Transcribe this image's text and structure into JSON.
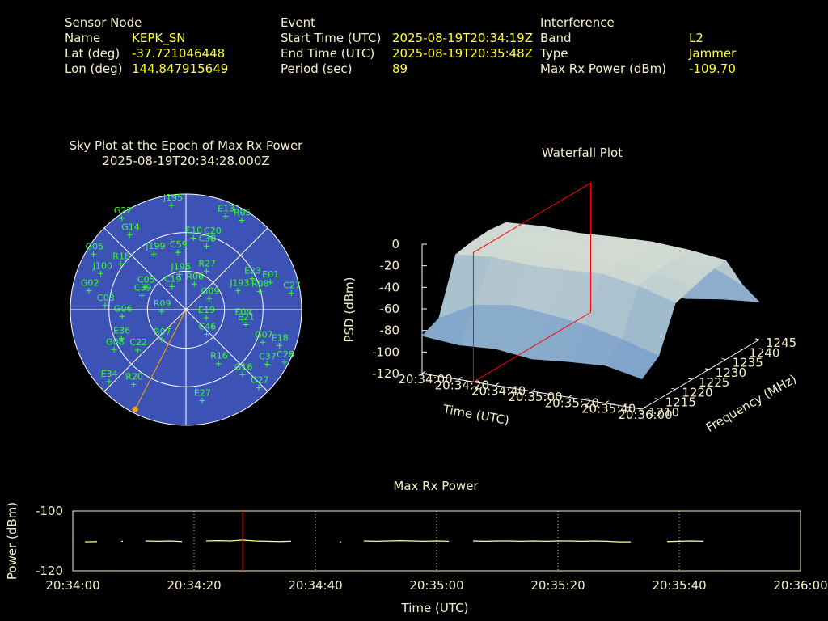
{
  "header": {
    "sensor": {
      "title": "Sensor Node",
      "rows": [
        [
          "Name",
          "KEPK_SN"
        ],
        [
          "Lat (deg)",
          "-37.721046448"
        ],
        [
          "Lon (deg)",
          "144.847915649"
        ]
      ]
    },
    "event": {
      "title": "Event",
      "rows": [
        [
          "Start Time (UTC)",
          "2025-08-19T20:34:19Z"
        ],
        [
          "End Time (UTC)",
          "2025-08-19T20:35:48Z"
        ],
        [
          "Period (sec)",
          "89"
        ]
      ]
    },
    "interference": {
      "title": "Interference",
      "rows": [
        [
          "Band",
          "L2"
        ],
        [
          "Type",
          "Jammer"
        ],
        [
          "Max Rx Power (dBm)",
          "-109.70"
        ]
      ]
    }
  },
  "chart_data": [
    {
      "type": "skyplot",
      "title": "Sky Plot at the Epoch of Max Rx Power",
      "subtitle": "2025-08-19T20:34:28.000Z",
      "rlim": [
        90,
        0
      ],
      "rticks": [
        0,
        30,
        60
      ],
      "azticks": [
        0,
        45,
        90,
        135,
        180,
        225,
        270,
        315
      ],
      "background": "#3d52b5",
      "color": "#33ff33",
      "satellites": [
        {
          "name": "J195",
          "az": 352,
          "el": 8
        },
        {
          "name": "E13",
          "az": 23,
          "el": 11
        },
        {
          "name": "R05",
          "az": 32,
          "el": 8
        },
        {
          "name": "G22",
          "az": 325,
          "el": 3
        },
        {
          "name": "G14",
          "az": 323,
          "el": 17
        },
        {
          "name": "E10",
          "az": 6,
          "el": 34
        },
        {
          "name": "C20",
          "az": 20,
          "el": 31
        },
        {
          "name": "J199",
          "az": 330,
          "el": 40
        },
        {
          "name": "C59",
          "az": 352,
          "el": 45
        },
        {
          "name": "C38",
          "az": 18,
          "el": 38
        },
        {
          "name": "R27",
          "az": 28,
          "el": 56
        },
        {
          "name": "J196",
          "az": 349,
          "el": 62
        },
        {
          "name": "R06",
          "az": 18,
          "el": 69
        },
        {
          "name": "C19",
          "az": 329,
          "el": 69
        },
        {
          "name": "E23",
          "az": 65,
          "el": 33
        },
        {
          "name": "E01",
          "az": 72,
          "el": 21
        },
        {
          "name": "J193",
          "az": 70,
          "el": 47
        },
        {
          "name": "R08",
          "az": 76,
          "el": 31
        },
        {
          "name": "C27",
          "az": 81,
          "el": 7
        },
        {
          "name": "G05",
          "az": 301,
          "el": 6
        },
        {
          "name": "R18",
          "az": 305,
          "el": 28
        },
        {
          "name": "J100",
          "az": 293,
          "el": 18
        },
        {
          "name": "G02",
          "az": 281,
          "el": 13
        },
        {
          "name": "C05",
          "az": 299,
          "el": 54
        },
        {
          "name": "C39",
          "az": 288,
          "el": 54
        },
        {
          "name": "G09",
          "az": 65,
          "el": 70
        },
        {
          "name": "R09",
          "az": 266,
          "el": 71
        },
        {
          "name": "E19",
          "az": 112,
          "el": 73
        },
        {
          "name": "E04",
          "az": 100,
          "el": 45
        },
        {
          "name": "C03",
          "az": 273,
          "el": 27
        },
        {
          "name": "G06",
          "az": 264,
          "el": 40
        },
        {
          "name": "E36",
          "az": 246,
          "el": 35
        },
        {
          "name": "G08",
          "az": 241,
          "el": 26
        },
        {
          "name": "C22",
          "az": 230,
          "el": 41
        },
        {
          "name": "R07",
          "az": 219,
          "el": 60
        },
        {
          "name": "C46",
          "az": 140,
          "el": 65
        },
        {
          "name": "E21",
          "az": 104,
          "el": 42
        },
        {
          "name": "G07",
          "az": 113,
          "el": 25
        },
        {
          "name": "E18",
          "az": 111,
          "el": 12
        },
        {
          "name": "R16",
          "az": 149,
          "el": 41
        },
        {
          "name": "C37",
          "az": 124,
          "el": 14
        },
        {
          "name": "C28",
          "az": 118,
          "el": 3
        },
        {
          "name": "G16",
          "az": 139,
          "el": 23
        },
        {
          "name": "G27",
          "az": 137,
          "el": 7
        },
        {
          "name": "E34",
          "az": 227,
          "el": 8
        },
        {
          "name": "R20",
          "az": 215,
          "el": 19
        },
        {
          "name": "E27",
          "az": 170,
          "el": 18
        }
      ],
      "interference": {
        "az": 207,
        "el": 3,
        "color": "#ffa500"
      }
    },
    {
      "type": "surface3d",
      "title": "Waterfall Plot",
      "xlabel": "Time (UTC)",
      "ylabel": "Frequency (MHz)",
      "zlabel": "PSD (dBm)",
      "xlim": [
        "20:34:00",
        "20:36:00"
      ],
      "xticks": [
        "20:34:00",
        "20:34:20",
        "20:34:40",
        "20:35:00",
        "20:35:20",
        "20:35:40",
        "20:36:00"
      ],
      "ylim": [
        1210,
        1245
      ],
      "yticks": [
        1210,
        1215,
        1220,
        1225,
        1230,
        1235,
        1240,
        1245
      ],
      "zlim": [
        -120,
        0
      ],
      "zticks": [
        -120,
        -100,
        -80,
        -60,
        -40,
        -20,
        0
      ],
      "z": [
        [
          -85,
          -88,
          -86,
          -90,
          -87,
          -85,
          -92
        ],
        [
          -78,
          -60,
          -55,
          -58,
          -62,
          -70,
          -80
        ],
        [
          -28,
          -25,
          -27,
          -26,
          -24,
          -30,
          -40
        ],
        [
          -25,
          -22,
          -24,
          -23,
          -22,
          -26,
          -35
        ],
        [
          -24,
          -23,
          -22,
          -24,
          -23,
          -25,
          -30
        ],
        [
          -26,
          -24,
          -25,
          -23,
          -22,
          -24,
          -28
        ],
        [
          -55,
          -50,
          -52,
          -48,
          -50,
          -45,
          -60
        ],
        [
          -95,
          -92,
          -94,
          -90,
          -93,
          -88,
          -85
        ]
      ],
      "cursor": "20:34:28",
      "cursor_color": "#ff0000"
    },
    {
      "type": "line",
      "title": "Max Rx Power",
      "xlabel": "Time (UTC)",
      "ylabel": "Power (dBm)",
      "xlim": [
        "20:34:00",
        "20:36:00"
      ],
      "xticks": [
        "20:34:00",
        "20:34:20",
        "20:34:40",
        "20:35:00",
        "20:35:20",
        "20:35:40",
        "20:36:00"
      ],
      "ylim": [
        -120,
        -100
      ],
      "yticks": [
        -120,
        -100
      ],
      "grid": true,
      "color": "#ffff99",
      "x": [
        "20:34:00",
        "20:34:02",
        "20:34:04",
        "20:34:06",
        "20:34:08",
        "20:34:10",
        "20:34:12",
        "20:34:14",
        "20:34:16",
        "20:34:18",
        "20:34:20",
        "20:34:22",
        "20:34:24",
        "20:34:26",
        "20:34:28",
        "20:34:30",
        "20:34:32",
        "20:34:34",
        "20:34:36",
        "20:34:38",
        "20:34:40",
        "20:34:42",
        "20:34:44",
        "20:34:46",
        "20:34:48",
        "20:34:50",
        "20:34:52",
        "20:34:54",
        "20:34:56",
        "20:34:58",
        "20:35:00",
        "20:35:02",
        "20:35:04",
        "20:35:06",
        "20:35:08",
        "20:35:10",
        "20:35:12",
        "20:35:14",
        "20:35:16",
        "20:35:18",
        "20:35:20",
        "20:35:22",
        "20:35:24",
        "20:35:26",
        "20:35:28",
        "20:35:30",
        "20:35:32",
        "20:35:34",
        "20:35:36",
        "20:35:38",
        "20:35:40",
        "20:35:42",
        "20:35:44",
        "20:35:46",
        "20:35:48",
        "20:35:50",
        "20:35:52",
        "20:35:54",
        "20:35:56",
        "20:35:58",
        "20:36:00"
      ],
      "values": [
        null,
        -110.3,
        -110.2,
        null,
        -110.1,
        null,
        -110.0,
        -110.1,
        -110.0,
        -110.2,
        null,
        -110.0,
        -109.9,
        -110.0,
        -109.7,
        -110.0,
        -110.1,
        -110.2,
        -110.1,
        null,
        null,
        null,
        -110.3,
        null,
        -110.0,
        -110.1,
        -110.0,
        -109.9,
        -110.0,
        -110.1,
        -110.0,
        -110.1,
        null,
        -110.0,
        -110.1,
        -110.0,
        -110.0,
        -110.1,
        -110.0,
        -110.1,
        -110.0,
        -110.0,
        -110.1,
        -110.0,
        -110.1,
        -110.3,
        -110.3,
        null,
        null,
        -110.2,
        -110.1,
        -110.0,
        -110.1,
        null,
        null,
        null,
        null,
        null,
        null,
        null,
        null
      ],
      "cursor": "20:34:28",
      "cursor_color": "#ff0000"
    }
  ]
}
